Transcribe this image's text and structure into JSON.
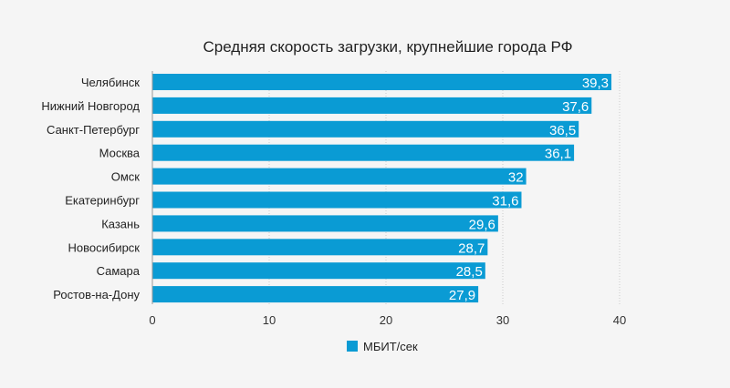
{
  "chart_data": {
    "type": "bar",
    "orientation": "horizontal",
    "title": "Средняя скорость загрузки, крупнейшие города РФ",
    "categories": [
      "Челябинск",
      "Нижний Новгород",
      "Санкт-Петербург",
      "Москва",
      "Омск",
      "Екатеринбург",
      "Казань",
      "Новосибирск",
      "Самара",
      "Ростов-на-Дону"
    ],
    "values": [
      39.3,
      37.6,
      36.5,
      36.1,
      32,
      31.6,
      29.6,
      28.7,
      28.5,
      27.9
    ],
    "value_labels": [
      "39,3",
      "37,6",
      "36,5",
      "36,1",
      "32",
      "31,6",
      "29,6",
      "28,7",
      "28,5",
      "27,9"
    ],
    "xlim": [
      0,
      40
    ],
    "xticks": [
      0,
      10,
      20,
      30,
      40
    ],
    "xtick_labels": [
      "0",
      "10",
      "20",
      "30",
      "40"
    ],
    "grid": true,
    "legend": {
      "placement": "bottom",
      "entries": [
        "МБИТ/сек"
      ]
    },
    "bar_color": "#0a9bd4"
  }
}
